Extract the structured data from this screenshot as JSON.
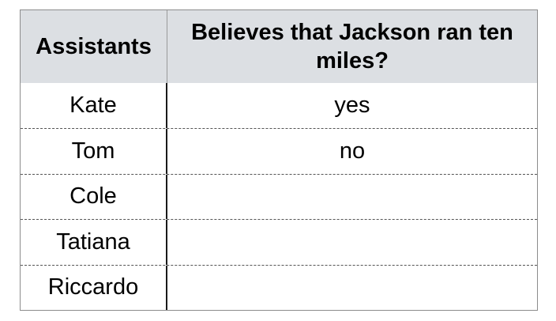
{
  "table": {
    "headers": [
      "Assistants",
      "Believes that Jackson ran ten miles?"
    ],
    "rows": [
      [
        "Kate",
        "yes"
      ],
      [
        "Tom",
        "no"
      ],
      [
        "Cole",
        ""
      ],
      [
        "Tatiana",
        ""
      ],
      [
        "Riccardo",
        ""
      ]
    ]
  }
}
